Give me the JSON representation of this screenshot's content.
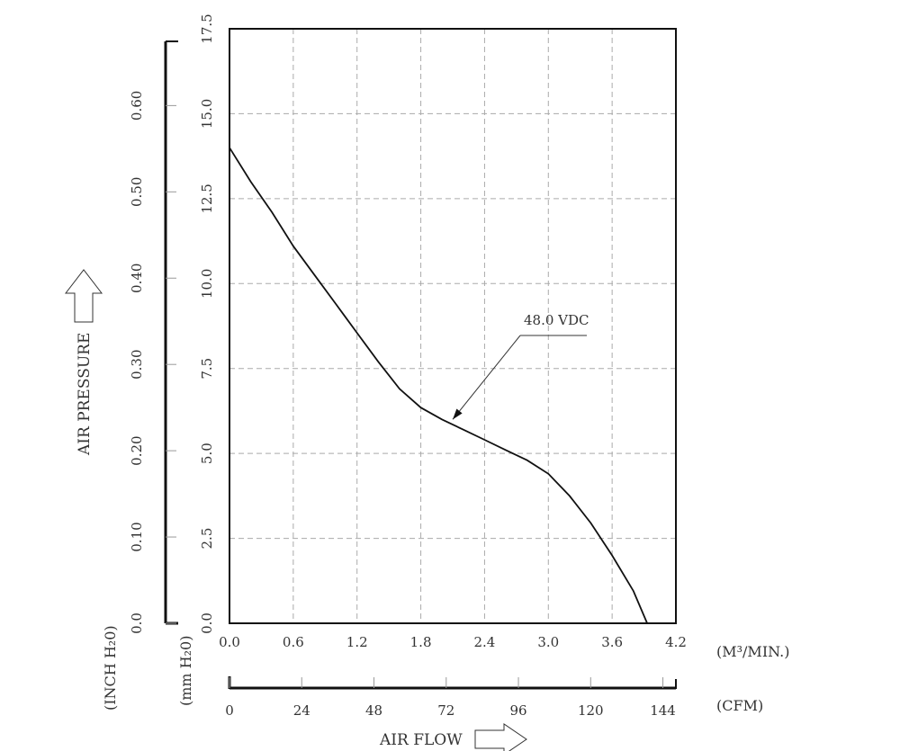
{
  "chart_data": {
    "type": "line",
    "x_axis": {
      "label": "AIR FLOW",
      "primary_unit": "(M³/MIN.)",
      "primary_range": [
        0,
        4.2
      ],
      "primary_ticks": [
        "0.0",
        "0.6",
        "1.2",
        "1.8",
        "2.4",
        "3.0",
        "3.6",
        "4.2"
      ],
      "secondary_unit": "(CFM)",
      "secondary_range": [
        0,
        148.32
      ],
      "secondary_ticks": [
        "0",
        "24",
        "48",
        "72",
        "96",
        "120",
        "144"
      ]
    },
    "y_axis": {
      "label": "AIR PRESSURE",
      "primary_unit": "(mm H₂0)",
      "primary_range": [
        0,
        17.5
      ],
      "primary_ticks": [
        "0.0",
        "2.5",
        "5.0",
        "7.5",
        "10.0",
        "12.5",
        "15.0",
        "17.5"
      ],
      "secondary_unit": "(INCH H₂0)",
      "secondary_range": [
        0,
        0.689
      ],
      "secondary_ticks": [
        "0.0",
        "0.10",
        "0.20",
        "0.30",
        "0.40",
        "0.50",
        "0.60"
      ]
    },
    "grid": true,
    "series": [
      {
        "name": "48.0 VDC",
        "x": [
          0.0,
          0.2,
          0.4,
          0.6,
          0.8,
          1.0,
          1.2,
          1.4,
          1.6,
          1.8,
          2.0,
          2.2,
          2.4,
          2.6,
          2.8,
          3.0,
          3.2,
          3.4,
          3.6,
          3.8,
          3.93
        ],
        "y": [
          14.0,
          13.0,
          12.1,
          11.1,
          10.25,
          9.4,
          8.55,
          7.7,
          6.9,
          6.35,
          6.0,
          5.7,
          5.4,
          5.1,
          4.8,
          4.4,
          3.75,
          2.95,
          2.0,
          0.95,
          0.0
        ]
      }
    ],
    "annotation": {
      "text": "48.0 VDC",
      "points_to": [
        2.1,
        6.0
      ]
    }
  }
}
